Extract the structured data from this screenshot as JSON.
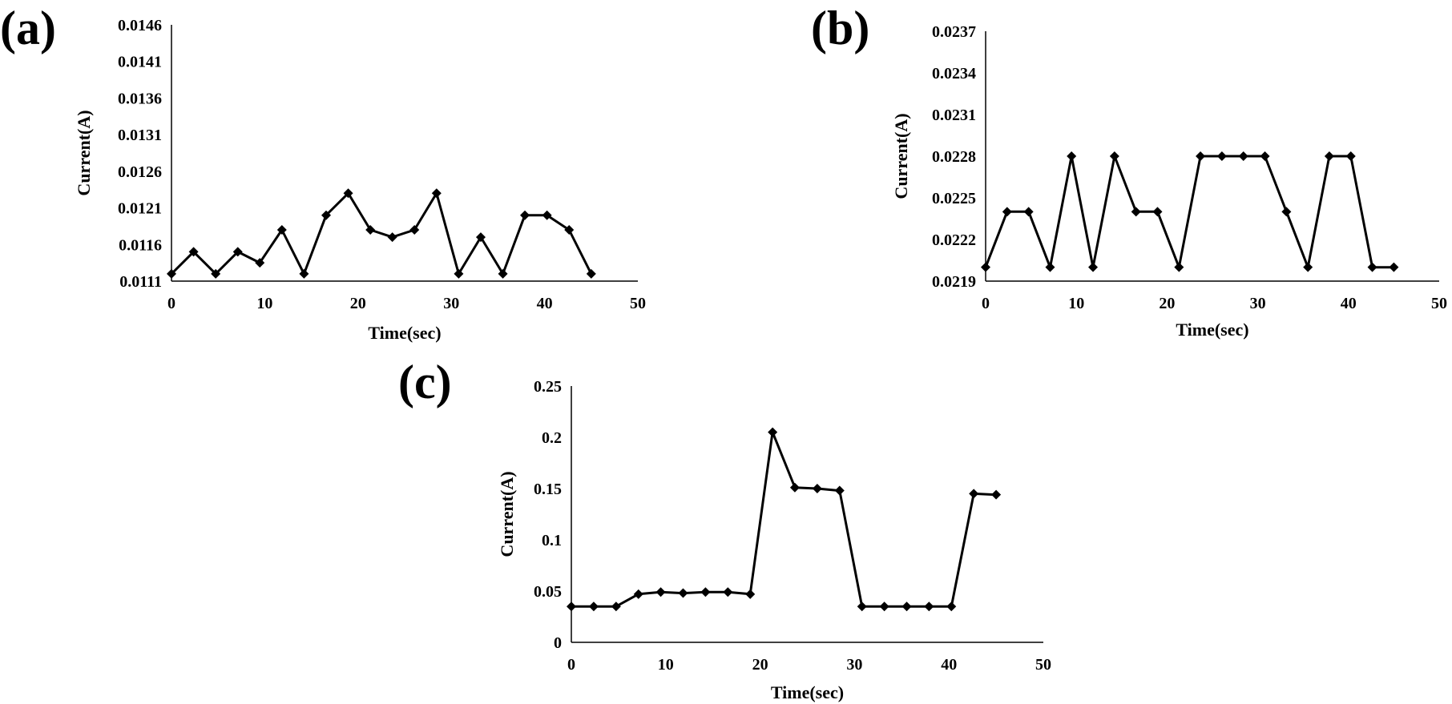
{
  "chart_data": [
    {
      "panel_label": "(a)",
      "type": "line",
      "xlabel": "Time(sec)",
      "ylabel": "Current(A)",
      "xlim": [
        0,
        50
      ],
      "ylim": [
        0.0111,
        0.0146
      ],
      "x_ticks": [
        "0",
        "10",
        "20",
        "30",
        "40",
        "50"
      ],
      "y_ticks": [
        "0.0111",
        "0.0116",
        "0.0121",
        "0.0126",
        "0.0131",
        "0.0136",
        "0.0141",
        "0.0146"
      ],
      "grid": false,
      "marker": "diamond",
      "x": [
        0,
        2.37,
        4.74,
        7.11,
        9.47,
        11.84,
        14.21,
        16.58,
        18.95,
        21.32,
        23.68,
        26.05,
        28.42,
        30.79,
        33.16,
        35.53,
        37.89,
        40.26,
        42.63,
        45
      ],
      "y": [
        0.0112,
        0.0115,
        0.0112,
        0.0115,
        0.01135,
        0.0118,
        0.0112,
        0.012,
        0.0123,
        0.0118,
        0.0117,
        0.0118,
        0.0123,
        0.0112,
        0.0117,
        0.0112,
        0.012,
        0.012,
        0.0118,
        0.0112
      ]
    },
    {
      "panel_label": "(b)",
      "type": "line",
      "xlabel": "Time(sec)",
      "ylabel": "Current(A)",
      "xlim": [
        0,
        50
      ],
      "ylim": [
        0.0219,
        0.0237
      ],
      "x_ticks": [
        "0",
        "10",
        "20",
        "30",
        "40",
        "50"
      ],
      "y_ticks": [
        "0.0219",
        "0.0222",
        "0.0225",
        "0.0228",
        "0.0231",
        "0.0234",
        "0.0237"
      ],
      "grid": false,
      "marker": "diamond",
      "x": [
        0,
        2.37,
        4.74,
        7.11,
        9.47,
        11.84,
        14.21,
        16.58,
        18.95,
        21.32,
        23.68,
        26.05,
        28.42,
        30.79,
        33.16,
        35.53,
        37.89,
        40.26,
        42.63,
        45
      ],
      "y": [
        0.022,
        0.0224,
        0.0224,
        0.022,
        0.0228,
        0.022,
        0.0228,
        0.0224,
        0.0224,
        0.022,
        0.0228,
        0.0228,
        0.0228,
        0.0228,
        0.0224,
        0.022,
        0.0228,
        0.0228,
        0.022,
        0.022
      ]
    },
    {
      "panel_label": "(c)",
      "type": "line",
      "xlabel": "Time(sec)",
      "ylabel": "Current(A)",
      "xlim": [
        0,
        50
      ],
      "ylim": [
        0,
        0.25
      ],
      "x_ticks": [
        "0",
        "10",
        "20",
        "30",
        "40",
        "50"
      ],
      "y_ticks": [
        "0",
        "0.05",
        "0.1",
        "0.15",
        "0.2",
        "0.25"
      ],
      "grid": false,
      "marker": "diamond",
      "x": [
        0,
        2.37,
        4.74,
        7.11,
        9.47,
        11.84,
        14.21,
        16.58,
        18.95,
        21.32,
        23.68,
        26.05,
        28.42,
        30.79,
        33.16,
        35.53,
        37.89,
        40.26,
        42.63,
        45
      ],
      "y": [
        0.035,
        0.035,
        0.035,
        0.047,
        0.049,
        0.048,
        0.049,
        0.049,
        0.047,
        0.205,
        0.151,
        0.15,
        0.148,
        0.035,
        0.035,
        0.035,
        0.035,
        0.035,
        0.145,
        0.144
      ]
    }
  ]
}
